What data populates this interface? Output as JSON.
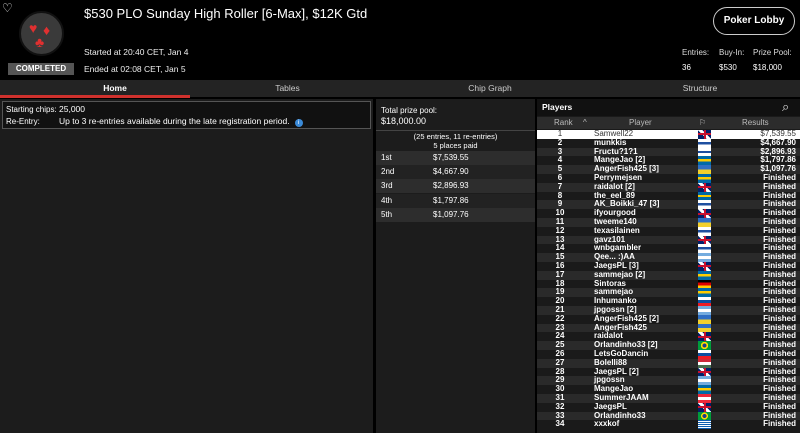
{
  "header": {
    "title": "$530 PLO Sunday High Roller [6-Max], $12K Gtd",
    "status": "COMPLETED",
    "started": "Started at 20:40 CET, Jan 4",
    "ended": "Ended at 02:08 CET, Jan 5",
    "lobby_button": "Poker Lobby",
    "stats": [
      {
        "label": "Entries:",
        "value": "36"
      },
      {
        "label": "Buy-In:",
        "value": "$530"
      },
      {
        "label": "Prize Pool:",
        "value": "$18,000"
      }
    ]
  },
  "tabs": [
    "Home",
    "Tables",
    "Chip Graph",
    "Structure"
  ],
  "info": {
    "chips_label": "Starting chips:",
    "chips": "25,000",
    "reentry_label": "Re-Entry:",
    "reentry": "Up to 3 re-entries available during the late registration period."
  },
  "prizes": {
    "total_label": "Total prize pool:",
    "total": "$18,000.00",
    "entries": "(25 entries, 11 re-entries)",
    "paid": "5 places paid",
    "places": [
      {
        "place": "1st",
        "amount": "$7,539.55"
      },
      {
        "place": "2nd",
        "amount": "$4,667.90"
      },
      {
        "place": "3rd",
        "amount": "$2,896.93"
      },
      {
        "place": "4th",
        "amount": "$1,797.86"
      },
      {
        "place": "5th",
        "amount": "$1,097.76"
      }
    ]
  },
  "players": {
    "title": "Players",
    "columns": {
      "rank": "Rank",
      "player": "Player",
      "results": "Results"
    },
    "rows": [
      {
        "rank": "1",
        "name": "Samwell22",
        "flag": "gb",
        "result": "$7,539.55"
      },
      {
        "rank": "2",
        "name": "munkkis",
        "flag": "fi",
        "result": "$4,667.90"
      },
      {
        "rank": "3",
        "name": "Fructu?1?1",
        "flag": "fi",
        "result": "$2,896.93"
      },
      {
        "rank": "4",
        "name": "MangeJao [2]",
        "flag": "se",
        "result": "$1,797.86"
      },
      {
        "rank": "5",
        "name": "AngerFish425 [3]",
        "flag": "ua",
        "result": "$1,097.76"
      },
      {
        "rank": "6",
        "name": "Perrymejsen",
        "flag": "se",
        "result": "Finished"
      },
      {
        "rank": "7",
        "name": "raidalot [2]",
        "flag": "gb",
        "result": "Finished"
      },
      {
        "rank": "8",
        "name": "the_eel_89",
        "flag": "se",
        "result": "Finished"
      },
      {
        "rank": "9",
        "name": "AK_Boikki_47 [3]",
        "flag": "fi",
        "result": "Finished"
      },
      {
        "rank": "10",
        "name": "ifyourgood",
        "flag": "gb",
        "result": "Finished"
      },
      {
        "rank": "11",
        "name": "tweeme140",
        "flag": "ua",
        "result": "Finished"
      },
      {
        "rank": "12",
        "name": "texasilainen",
        "flag": "fi",
        "result": "Finished"
      },
      {
        "rank": "13",
        "name": "gavz101",
        "flag": "gb",
        "result": "Finished"
      },
      {
        "rank": "14",
        "name": "wnbgambler",
        "flag": "fi",
        "result": "Finished"
      },
      {
        "rank": "15",
        "name": "Qee... :)AA",
        "flag": "ar",
        "result": "Finished"
      },
      {
        "rank": "16",
        "name": "JaegsPL [3]",
        "flag": "gb",
        "result": "Finished"
      },
      {
        "rank": "17",
        "name": "sammejao [2]",
        "flag": "se",
        "result": "Finished"
      },
      {
        "rank": "18",
        "name": "Sintoras",
        "flag": "de",
        "result": "Finished"
      },
      {
        "rank": "19",
        "name": "sammejao",
        "flag": "se",
        "result": "Finished"
      },
      {
        "rank": "20",
        "name": "Inhumanko",
        "flag": "sk",
        "result": "Finished"
      },
      {
        "rank": "21",
        "name": "jpgossn [2]",
        "flag": "ar",
        "result": "Finished"
      },
      {
        "rank": "22",
        "name": "AngerFish425 [2]",
        "flag": "ua",
        "result": "Finished"
      },
      {
        "rank": "23",
        "name": "AngerFish425",
        "flag": "ua",
        "result": "Finished"
      },
      {
        "rank": "24",
        "name": "raidalot",
        "flag": "gb",
        "result": "Finished"
      },
      {
        "rank": "25",
        "name": "Orlandinho33 [2]",
        "flag": "br",
        "result": "Finished"
      },
      {
        "rank": "26",
        "name": "LetsGoDancin",
        "flag": "sk",
        "result": "Finished"
      },
      {
        "rank": "27",
        "name": "Bolelli88",
        "flag": "hu",
        "result": "Finished"
      },
      {
        "rank": "28",
        "name": "JaegsPL [2]",
        "flag": "gb",
        "result": "Finished"
      },
      {
        "rank": "29",
        "name": "jpgossn",
        "flag": "ar",
        "result": "Finished"
      },
      {
        "rank": "30",
        "name": "MangeJao",
        "flag": "se",
        "result": "Finished"
      },
      {
        "rank": "31",
        "name": "SummerJAAM",
        "flag": "at",
        "result": "Finished"
      },
      {
        "rank": "32",
        "name": "JaegsPL",
        "flag": "gb",
        "result": "Finished"
      },
      {
        "rank": "33",
        "name": "Orlandinho33",
        "flag": "br",
        "result": "Finished"
      },
      {
        "rank": "34",
        "name": "xxxkof",
        "flag": "gr",
        "result": "Finished"
      }
    ]
  },
  "colors": {
    "accent": "#d0312d",
    "logo_suits": "#e03030"
  }
}
